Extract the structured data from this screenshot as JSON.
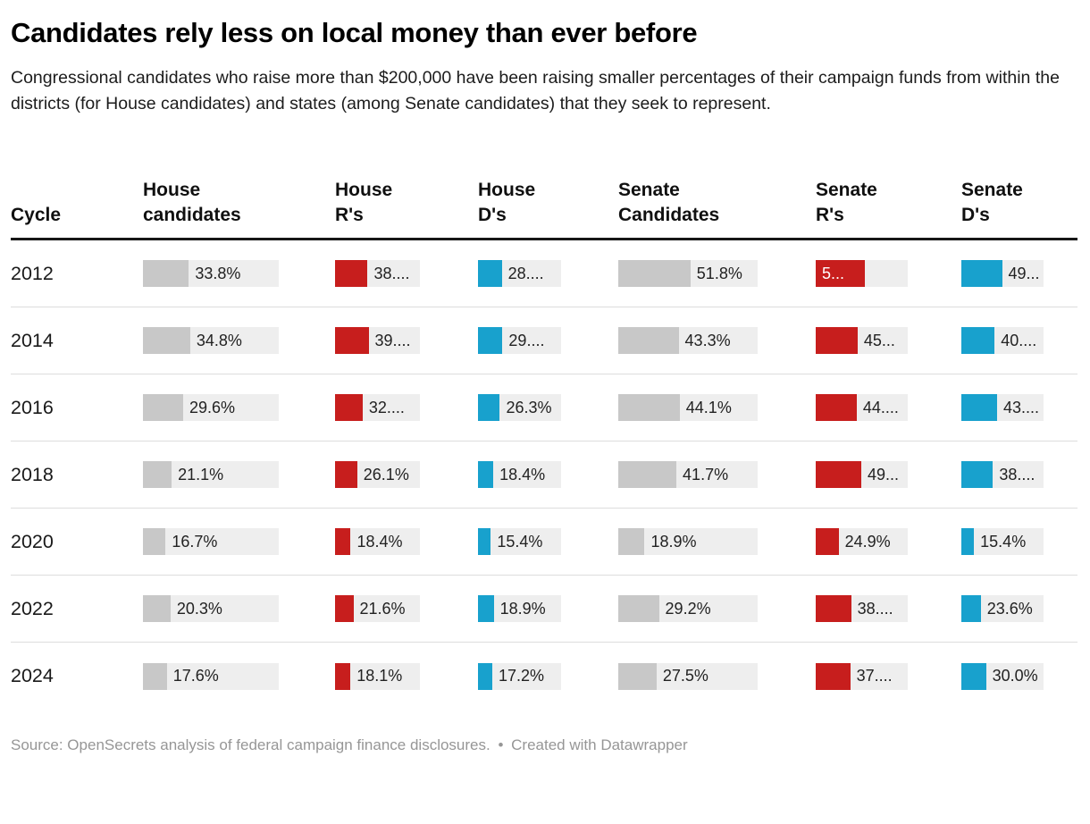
{
  "header": {
    "title": "Candidates rely less on local money than ever before",
    "description": "Congressional candidates who raise more than $200,000 have been raising smaller percentages of their campaign funds from within the districts (for House candidates) and states (among Senate candidates) that they seek to represent."
  },
  "footer": {
    "source": "Source: OpenSecrets analysis of federal campaign finance disclosures.",
    "separator": "•",
    "credit": "Created with Datawrapper"
  },
  "colors": {
    "track": "#eeeeee",
    "gray_bar": "#c8c8c8",
    "red_bar": "#c71e1d",
    "blue_bar": "#18a1cd",
    "header_rule": "#161616",
    "row_rule": "#dddddd"
  },
  "chart_data": {
    "type": "table",
    "title": "Candidates rely less on local money than ever before",
    "bar_scale": [
      0,
      100
    ],
    "columns": [
      {
        "id": "cycle",
        "line1": "",
        "line2": "Cycle"
      },
      {
        "id": "house_candidates",
        "line1": "House",
        "line2": "candidates",
        "color": "gray"
      },
      {
        "id": "house_r",
        "line1": "House",
        "line2": "R's",
        "color": "red"
      },
      {
        "id": "house_d",
        "line1": "House",
        "line2": "D's",
        "color": "blue"
      },
      {
        "id": "senate_candidates",
        "line1": "Senate",
        "line2": "Candidates",
        "color": "gray"
      },
      {
        "id": "senate_r",
        "line1": "Senate",
        "line2": "R's",
        "color": "red"
      },
      {
        "id": "senate_d",
        "line1": "Senate",
        "line2": "D's",
        "color": "blue"
      }
    ],
    "rows": [
      {
        "cycle": "2012",
        "cells": [
          {
            "label": "33.8%",
            "value": 33.8
          },
          {
            "label": "38....",
            "value": 38.4
          },
          {
            "label": "28....",
            "value": 28.6
          },
          {
            "label": "51.8%",
            "value": 51.8
          },
          {
            "label": "5...",
            "value": 53.0,
            "inside": true
          },
          {
            "label": "49...",
            "value": 49.5
          }
        ]
      },
      {
        "cycle": "2014",
        "cells": [
          {
            "label": "34.8%",
            "value": 34.8
          },
          {
            "label": "39....",
            "value": 39.5
          },
          {
            "label": "29....",
            "value": 29.5
          },
          {
            "label": "43.3%",
            "value": 43.3
          },
          {
            "label": "45...",
            "value": 45.5
          },
          {
            "label": "40....",
            "value": 40.5
          }
        ]
      },
      {
        "cycle": "2016",
        "cells": [
          {
            "label": "29.6%",
            "value": 29.6
          },
          {
            "label": "32....",
            "value": 32.5
          },
          {
            "label": "26.3%",
            "value": 26.3
          },
          {
            "label": "44.1%",
            "value": 44.1
          },
          {
            "label": "44....",
            "value": 44.5
          },
          {
            "label": "43....",
            "value": 43.5
          }
        ]
      },
      {
        "cycle": "2018",
        "cells": [
          {
            "label": "21.1%",
            "value": 21.1
          },
          {
            "label": "26.1%",
            "value": 26.1
          },
          {
            "label": "18.4%",
            "value": 18.4
          },
          {
            "label": "41.7%",
            "value": 41.7
          },
          {
            "label": "49...",
            "value": 49.5
          },
          {
            "label": "38....",
            "value": 38.5
          }
        ]
      },
      {
        "cycle": "2020",
        "cells": [
          {
            "label": "16.7%",
            "value": 16.7
          },
          {
            "label": "18.4%",
            "value": 18.4
          },
          {
            "label": "15.4%",
            "value": 15.4
          },
          {
            "label": "18.9%",
            "value": 18.9
          },
          {
            "label": "24.9%",
            "value": 24.9
          },
          {
            "label": "15.4%",
            "value": 15.4
          }
        ]
      },
      {
        "cycle": "2022",
        "cells": [
          {
            "label": "20.3%",
            "value": 20.3
          },
          {
            "label": "21.6%",
            "value": 21.6
          },
          {
            "label": "18.9%",
            "value": 18.9
          },
          {
            "label": "29.2%",
            "value": 29.2
          },
          {
            "label": "38....",
            "value": 38.5
          },
          {
            "label": "23.6%",
            "value": 23.6
          }
        ]
      },
      {
        "cycle": "2024",
        "cells": [
          {
            "label": "17.6%",
            "value": 17.6
          },
          {
            "label": "18.1%",
            "value": 18.1
          },
          {
            "label": "17.2%",
            "value": 17.2
          },
          {
            "label": "27.5%",
            "value": 27.5
          },
          {
            "label": "37....",
            "value": 37.5
          },
          {
            "label": "30.0%",
            "value": 30.0
          }
        ]
      }
    ]
  }
}
